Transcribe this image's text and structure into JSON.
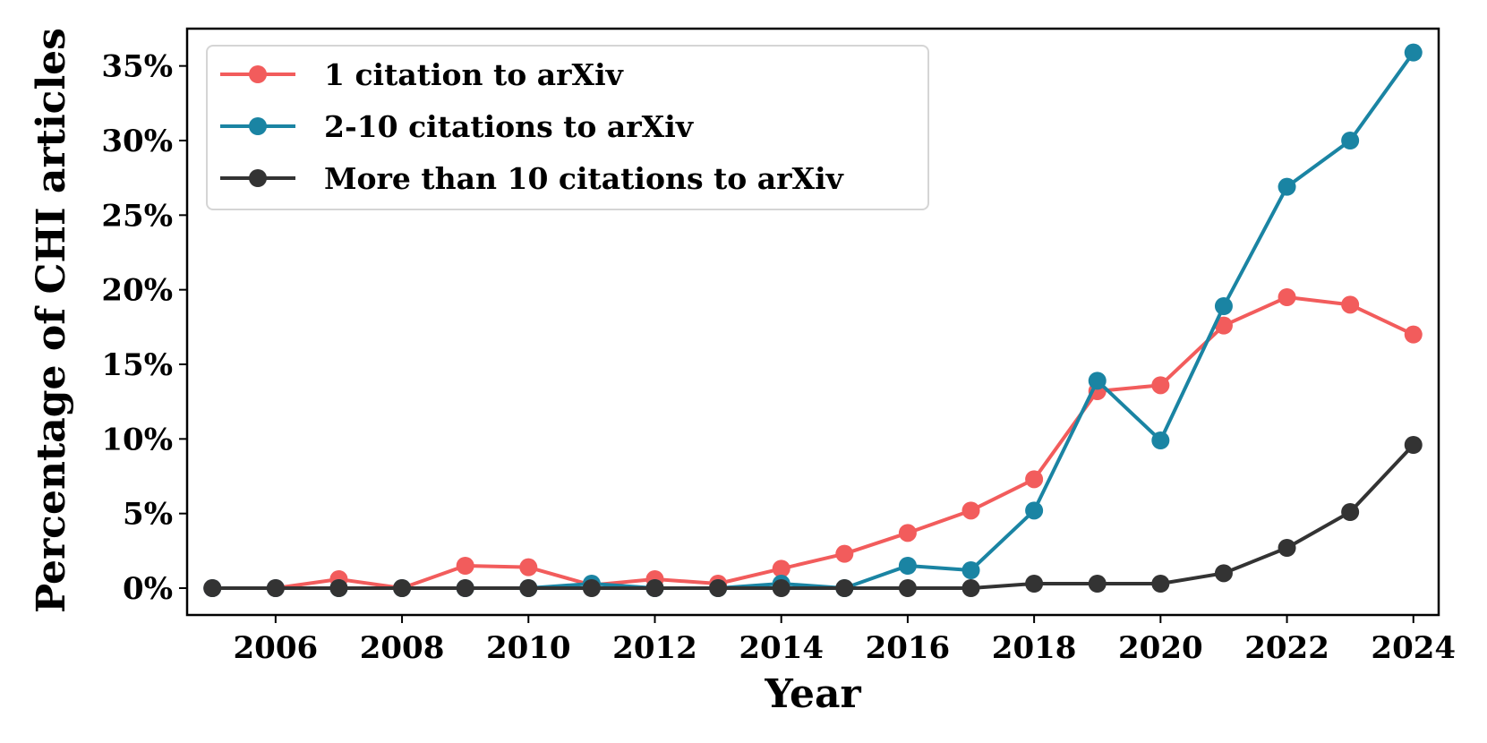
{
  "chart_data": {
    "type": "line",
    "title": "",
    "xlabel": "Year",
    "ylabel": "Percentage of CHI articles",
    "xlim": [
      2004.6,
      2024.4
    ],
    "ylim": [
      -1.8,
      37.5
    ],
    "x_ticks": [
      2006,
      2008,
      2010,
      2012,
      2014,
      2016,
      2018,
      2020,
      2022,
      2024
    ],
    "x_tick_labels": [
      "2006",
      "2008",
      "2010",
      "2012",
      "2014",
      "2016",
      "2018",
      "2020",
      "2022",
      "2024"
    ],
    "y_ticks": [
      0,
      5,
      10,
      15,
      20,
      25,
      30,
      35
    ],
    "y_tick_labels": [
      "0%",
      "5%",
      "10%",
      "15%",
      "20%",
      "25%",
      "30%",
      "35%"
    ],
    "grid": false,
    "legend_position": "upper-left",
    "x": [
      2005,
      2006,
      2007,
      2008,
      2009,
      2010,
      2011,
      2012,
      2013,
      2014,
      2015,
      2016,
      2017,
      2018,
      2019,
      2020,
      2021,
      2022,
      2023,
      2024
    ],
    "series": [
      {
        "name": "1 citation to arXiv",
        "color": "#f25c5c",
        "values": [
          0,
          0,
          0.6,
          0,
          1.5,
          1.4,
          0.2,
          0.6,
          0.3,
          1.3,
          2.3,
          3.7,
          5.2,
          7.3,
          13.2,
          13.6,
          17.6,
          19.5,
          19.0,
          17.0
        ]
      },
      {
        "name": "2-10 citations to arXiv",
        "color": "#1a84a3",
        "values": [
          0,
          0,
          0,
          0,
          0,
          0,
          0.3,
          0,
          0,
          0.3,
          0,
          1.5,
          1.2,
          5.2,
          13.9,
          9.9,
          18.9,
          26.9,
          30.0,
          35.9
        ]
      },
      {
        "name": "More than 10 citations to arXiv",
        "color": "#333333",
        "values": [
          0,
          0,
          0,
          0,
          0,
          0,
          0,
          0,
          0,
          0,
          0,
          0,
          0,
          0.3,
          0.3,
          0.3,
          1.0,
          2.7,
          5.1,
          9.6
        ]
      }
    ]
  }
}
